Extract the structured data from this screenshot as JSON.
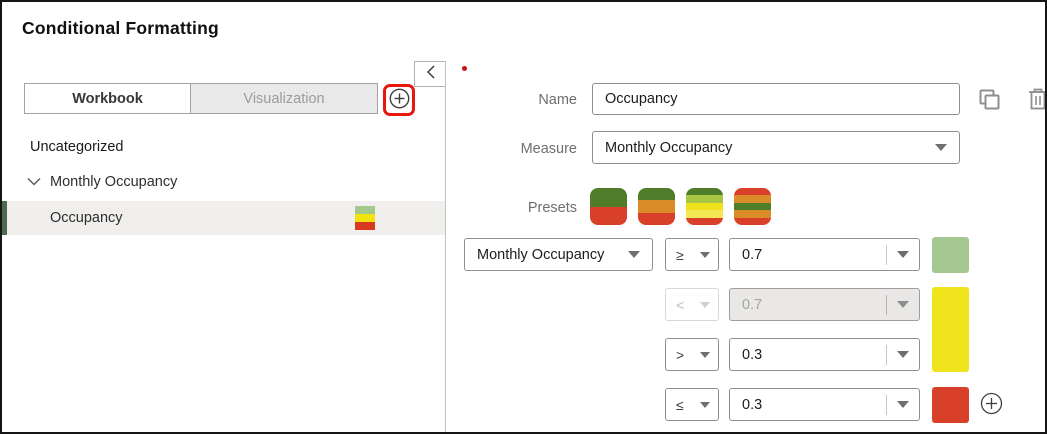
{
  "title": "Conditional Formatting",
  "annotations": {
    "highlight_color": "#e8170b",
    "dot_color": "#cc1111"
  },
  "left_panel": {
    "tabs": [
      {
        "label": "Workbook",
        "active": true
      },
      {
        "label": "Visualization",
        "active": false
      }
    ],
    "add_button_icon": "plus-circle-icon",
    "collapse_icon": "chevron-left-icon",
    "category_label": "Uncategorized",
    "tree_node": {
      "label": "Monthly Occupancy",
      "state": "expanded"
    },
    "selected_item": {
      "label": "Occupancy",
      "accent_color": "#4c6b50",
      "swatch_stripes": [
        "#a3c98b",
        "#f2e20d",
        "#d8391f"
      ]
    }
  },
  "detail_panel": {
    "name": {
      "label": "Name",
      "value": "Occupancy"
    },
    "measure": {
      "label": "Measure",
      "value": "Monthly Occupancy"
    },
    "duplicate_icon": "copy-icon",
    "delete_icon": "trash-icon",
    "presets": {
      "label": "Presets",
      "swatches": [
        {
          "name": "green-red",
          "stripes": [
            "#4f7d2a",
            "#4f7d2a",
            "#d8402a",
            "#d8402a"
          ]
        },
        {
          "name": "green-orange-red",
          "stripes": [
            "#4f7d2a",
            "#d98c27",
            "#d8402a"
          ]
        },
        {
          "name": "green-yellowgreen-yellow-red",
          "stripes": [
            "#4f7d2a",
            "#a9c544",
            "#efe21c",
            "#f2e754",
            "#d8402a"
          ]
        },
        {
          "name": "red-orange-green-orange-red",
          "stripes": [
            "#d8402a",
            "#d98c27",
            "#4f7d2a",
            "#d98c27",
            "#d8402a"
          ]
        }
      ]
    },
    "rules": [
      {
        "measure": "Monthly Occupancy",
        "operator": "≥",
        "value": "0.7",
        "swatch_color": "#a5c791",
        "disabled": false
      },
      {
        "operator": "<",
        "value": "0.7",
        "swatch_color": "#f0e41c",
        "disabled": true
      },
      {
        "operator": ">",
        "value": "0.3",
        "disabled": false
      },
      {
        "operator": "≤",
        "value": "0.3",
        "swatch_color": "#d8402a",
        "disabled": false
      }
    ],
    "add_threshold_icon": "plus-circle-icon"
  }
}
